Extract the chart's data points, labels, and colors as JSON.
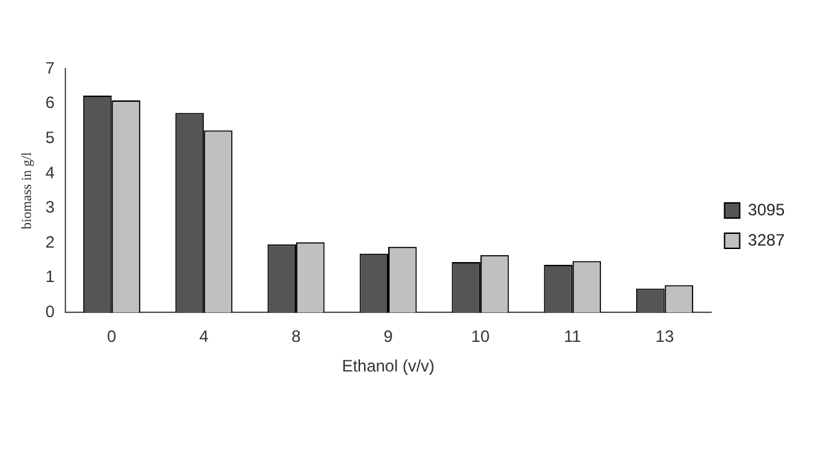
{
  "chart_data": {
    "type": "bar",
    "xlabel": "Ethanol (v/v)",
    "ylabel": "biomass in g/l",
    "categories": [
      "0",
      "4",
      "8",
      "9",
      "10",
      "11",
      "13"
    ],
    "series": [
      {
        "name": "3095",
        "color": "#555555",
        "values": [
          6.23,
          5.73,
          1.96,
          1.69,
          1.45,
          1.37,
          0.69
        ]
      },
      {
        "name": "3287",
        "color": "#c0c0c0",
        "values": [
          6.09,
          5.23,
          2.02,
          1.89,
          1.65,
          1.48,
          0.79
        ]
      }
    ],
    "ylim": [
      0,
      7
    ],
    "yticks": [
      0,
      1,
      2,
      3,
      4,
      5,
      6,
      7
    ],
    "legend": "right"
  }
}
